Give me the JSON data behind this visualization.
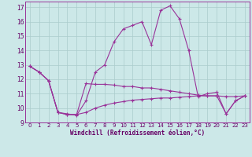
{
  "background_color": "#cce8e8",
  "line_color": "#993399",
  "grid_color": "#aacccc",
  "xlabel": "Windchill (Refroidissement éolien,°C)",
  "xlabel_color": "#660066",
  "tick_color": "#660066",
  "xlim": [
    -0.5,
    23.5
  ],
  "ylim": [
    9,
    17.4
  ],
  "yticks": [
    9,
    10,
    11,
    12,
    13,
    14,
    15,
    16,
    17
  ],
  "xticks": [
    0,
    1,
    2,
    3,
    4,
    5,
    6,
    7,
    8,
    9,
    10,
    11,
    12,
    13,
    14,
    15,
    16,
    17,
    18,
    19,
    20,
    21,
    22,
    23
  ],
  "series": [
    [
      12.9,
      12.5,
      11.9,
      9.7,
      9.6,
      9.5,
      10.5,
      12.5,
      13.0,
      14.6,
      15.5,
      15.75,
      16.0,
      14.4,
      16.8,
      17.1,
      16.2,
      14.0,
      10.8,
      11.0,
      11.1,
      9.6,
      10.5,
      10.85
    ],
    [
      12.9,
      12.5,
      11.9,
      9.7,
      9.55,
      9.55,
      11.7,
      11.65,
      11.65,
      11.6,
      11.5,
      11.5,
      11.4,
      11.4,
      11.3,
      11.2,
      11.1,
      11.0,
      10.9,
      10.85,
      10.85,
      10.8,
      10.8,
      10.85
    ],
    [
      12.9,
      12.5,
      11.9,
      9.7,
      9.55,
      9.55,
      9.7,
      10.0,
      10.2,
      10.35,
      10.45,
      10.55,
      10.6,
      10.65,
      10.7,
      10.7,
      10.75,
      10.8,
      10.85,
      10.85,
      10.85,
      9.6,
      10.5,
      10.85
    ]
  ]
}
